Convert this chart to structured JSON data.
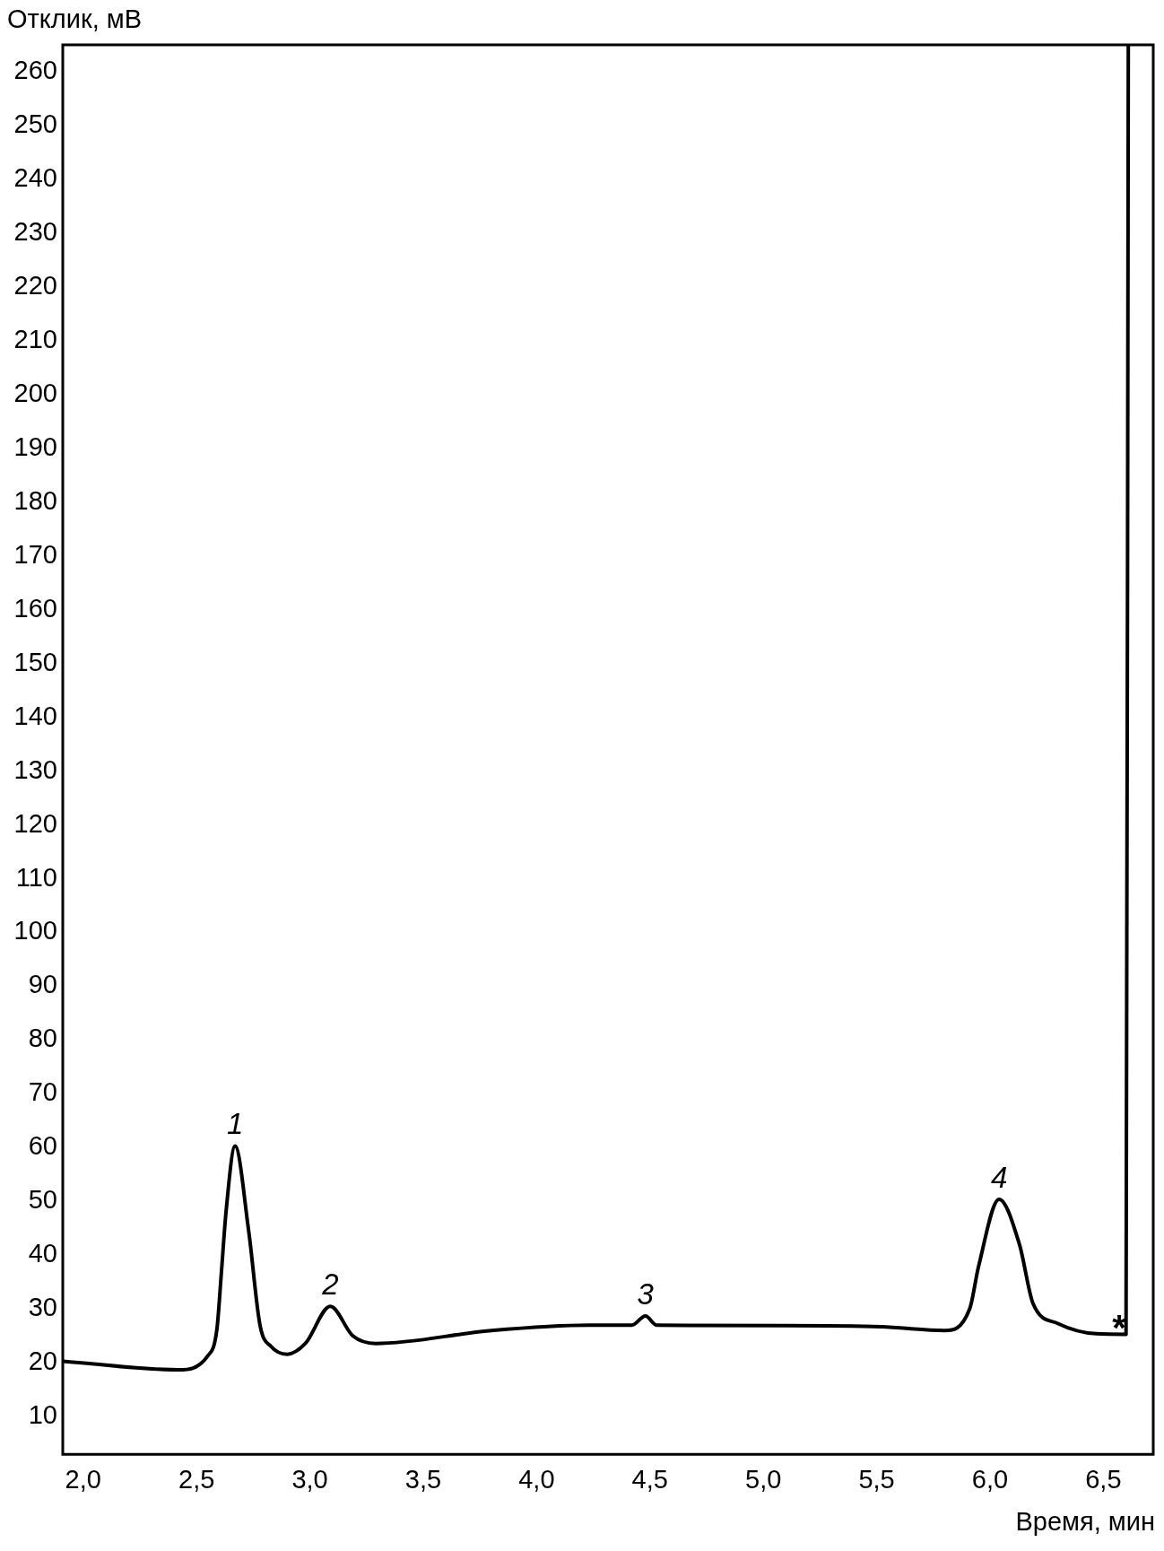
{
  "chart_data": {
    "type": "line",
    "xlabel": "Время, мин",
    "ylabel": "Отклик, мВ",
    "color": "#000000",
    "marker": "none",
    "x": [
      1.91,
      2.42,
      2.55,
      2.59,
      2.61,
      2.63,
      2.67,
      2.73,
      2.78,
      2.83,
      2.9,
      2.98,
      3.09,
      3.19,
      3.29,
      3.8,
      4.23,
      4.42,
      4.48,
      4.53,
      5.09,
      5.52,
      5.8,
      5.91,
      5.95,
      6.04,
      6.13,
      6.19,
      6.3,
      6.47,
      6.6,
      6.61
    ],
    "values": [
      20.3,
      18.7,
      21.3,
      26.3,
      37,
      48,
      60.3,
      44.5,
      27,
      23,
      21.6,
      23.6,
      30.5,
      25,
      23.6,
      26,
      27,
      27,
      28.7,
      27,
      26.9,
      26.7,
      26,
      30,
      38,
      50.4,
      42,
      31,
      27.3,
      25.4,
      25.3,
      265
    ],
    "xlim": [
      1.91,
      6.72
    ],
    "ylim": [
      3,
      265
    ],
    "xticks": [
      {
        "value": 2,
        "label": "2,0"
      },
      {
        "value": 2.5,
        "label": "2,5"
      },
      {
        "value": 3,
        "label": "3,0"
      },
      {
        "value": 3.5,
        "label": "3,5"
      },
      {
        "value": 4,
        "label": "4,0"
      },
      {
        "value": 4.5,
        "label": "4,5"
      },
      {
        "value": 5,
        "label": "5,0"
      },
      {
        "value": 5.5,
        "label": "5,5"
      },
      {
        "value": 6,
        "label": "6,0"
      },
      {
        "value": 6.5,
        "label": "6,5"
      }
    ],
    "yticks": [
      10,
      20,
      30,
      40,
      50,
      60,
      70,
      80,
      90,
      100,
      110,
      120,
      130,
      140,
      150,
      160,
      170,
      180,
      190,
      200,
      210,
      220,
      230,
      240,
      250,
      260
    ],
    "annotations": [
      {
        "text": "1",
        "x": 2.67,
        "y": 60.3
      },
      {
        "text": "2",
        "x": 3.09,
        "y": 30.5
      },
      {
        "text": "3",
        "x": 4.48,
        "y": 28.7
      },
      {
        "text": "4",
        "x": 6.04,
        "y": 50.4
      },
      "*"
    ]
  }
}
